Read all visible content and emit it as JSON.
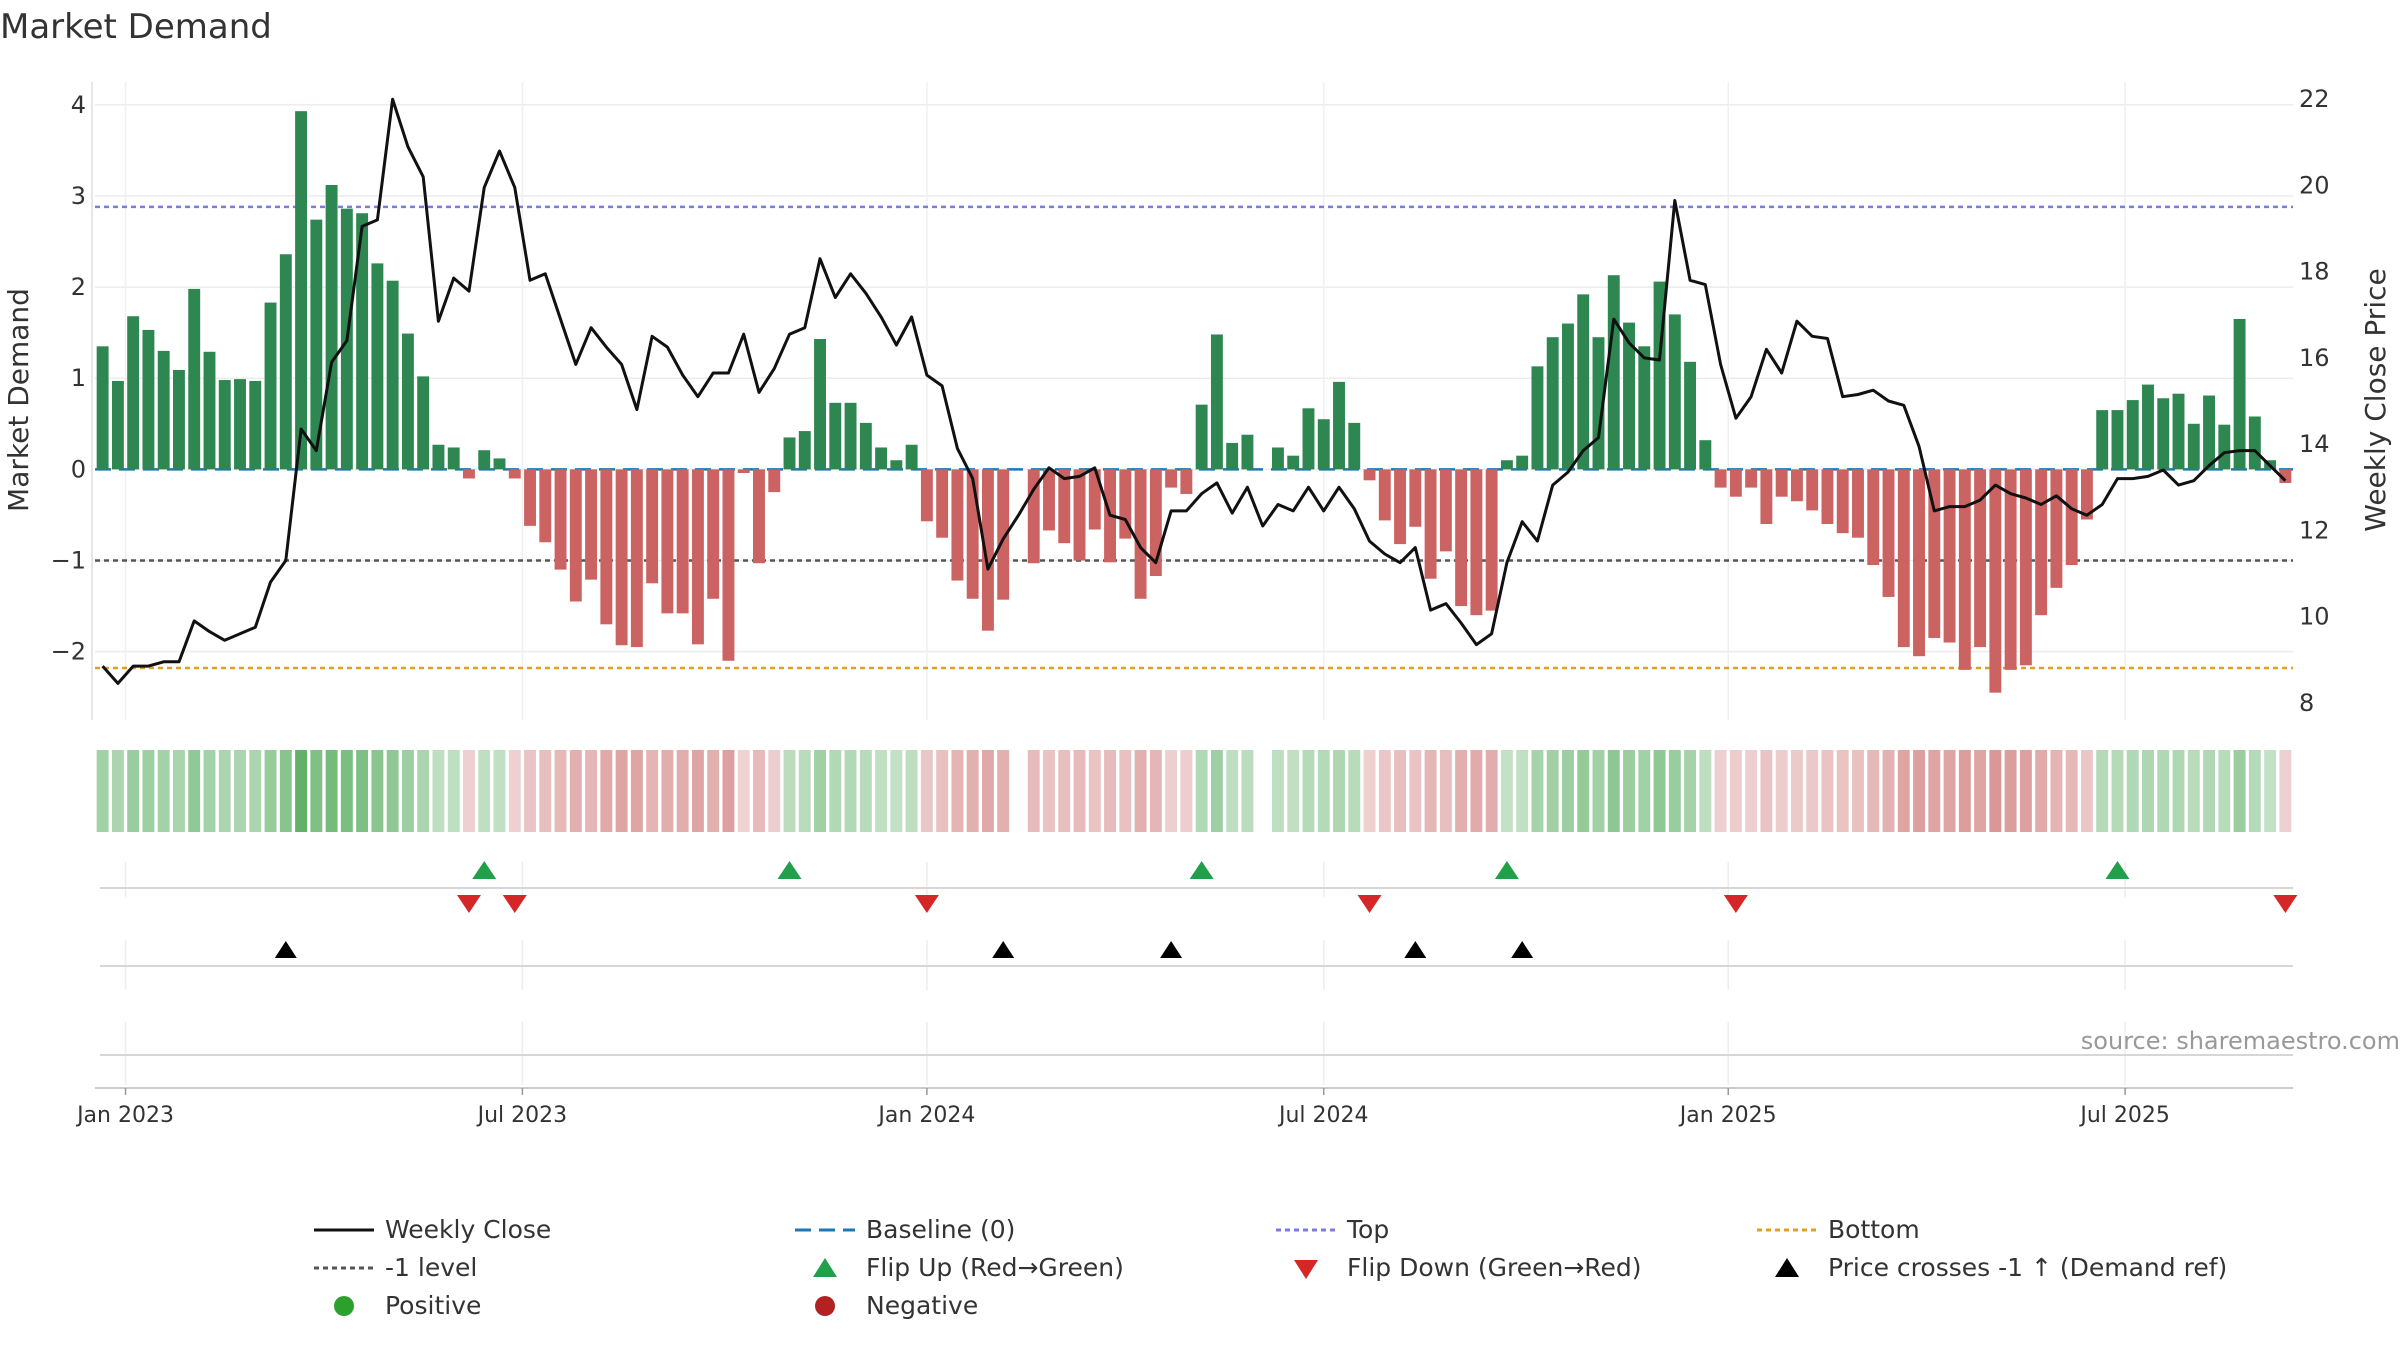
{
  "chart_data": {
    "type": "bar+line",
    "title": "Market Demand",
    "ylabel_left": "Market Demand",
    "ylabel_right": "Weekly Close Price",
    "ylim_left": [
      -2.75,
      4.25
    ],
    "ylim_right": [
      7.6,
      22.4
    ],
    "yticks_left": [
      {
        "v": 4,
        "label": "4"
      },
      {
        "v": 3,
        "label": "3"
      },
      {
        "v": 2,
        "label": "2"
      },
      {
        "v": 1,
        "label": "1"
      },
      {
        "v": 0,
        "label": "0"
      },
      {
        "v": -1,
        "label": "−1"
      },
      {
        "v": -2,
        "label": "−2"
      }
    ],
    "yticks_right": [
      {
        "v": 22,
        "label": "22"
      },
      {
        "v": 20,
        "label": "20"
      },
      {
        "v": 18,
        "label": "18"
      },
      {
        "v": 16,
        "label": "16"
      },
      {
        "v": 14,
        "label": "14"
      },
      {
        "v": 12,
        "label": "12"
      },
      {
        "v": 10,
        "label": "10"
      },
      {
        "v": 8,
        "label": "8"
      }
    ],
    "xticks": [
      {
        "week": 1.5,
        "label": "Jan 2023"
      },
      {
        "week": 27.5,
        "label": "Jul 2023"
      },
      {
        "week": 54,
        "label": "Jan 2024"
      },
      {
        "week": 80,
        "label": "Jul 2024"
      },
      {
        "week": 106.5,
        "label": "Jan 2025"
      },
      {
        "week": 132.5,
        "label": "Jul 2025"
      }
    ],
    "top_level": 2.88,
    "bottom_level": -2.18,
    "minus_one_level": -1,
    "baseline": 0,
    "demand": [
      1.35,
      0.97,
      1.68,
      1.53,
      1.3,
      1.09,
      1.98,
      1.29,
      0.98,
      0.99,
      0.97,
      1.83,
      2.36,
      3.93,
      2.74,
      3.12,
      2.86,
      2.81,
      2.26,
      2.07,
      1.49,
      1.02,
      0.27,
      0.24,
      -0.1,
      0.21,
      0.12,
      -0.1,
      -0.62,
      -0.8,
      -1.1,
      -1.45,
      -1.21,
      -1.7,
      -1.93,
      -1.95,
      -1.25,
      -1.58,
      -1.58,
      -1.92,
      -1.42,
      -2.1,
      -0.04,
      -1.03,
      -0.25,
      0.35,
      0.42,
      1.43,
      0.73,
      0.73,
      0.51,
      0.24,
      0.1,
      0.27,
      -0.57,
      -0.75,
      -1.22,
      -1.42,
      -1.77,
      -1.43,
      null,
      -1.03,
      -0.67,
      -0.81,
      -1.0,
      -0.66,
      -1.02,
      -0.76,
      -1.42,
      -1.17,
      -0.2,
      -0.27,
      0.71,
      1.48,
      0.29,
      0.38,
      null,
      0.24,
      0.15,
      0.67,
      0.55,
      0.96,
      0.51,
      -0.12,
      -0.56,
      -0.82,
      -0.63,
      -1.2,
      -0.9,
      -1.5,
      -1.6,
      -1.55,
      0.1,
      0.15,
      1.13,
      1.45,
      1.6,
      1.92,
      1.45,
      2.13,
      1.61,
      1.35,
      2.06,
      1.7,
      1.18,
      0.32,
      -0.2,
      -0.3,
      -0.2,
      -0.6,
      -0.3,
      -0.35,
      -0.45,
      -0.6,
      -0.7,
      -0.75,
      -1.05,
      -1.4,
      -1.95,
      -2.05,
      -1.85,
      -1.9,
      -2.2,
      -1.95,
      -2.45,
      -2.2,
      -2.15,
      -1.6,
      -1.3,
      -1.05,
      -0.55,
      0.65,
      0.65,
      0.76,
      0.93,
      0.78,
      0.83,
      0.5,
      0.81,
      0.49,
      1.65,
      0.58,
      0.1,
      -0.15
    ],
    "weekly_close": [
      8.85,
      8.45,
      8.85,
      8.85,
      8.95,
      8.95,
      9.9,
      9.65,
      9.45,
      9.6,
      9.75,
      10.8,
      11.3,
      14.35,
      13.85,
      15.9,
      16.4,
      19.05,
      19.2,
      22.0,
      20.9,
      20.2,
      16.85,
      17.85,
      17.55,
      19.95,
      20.8,
      19.95,
      17.8,
      17.95,
      16.9,
      15.85,
      16.7,
      16.25,
      15.85,
      14.8,
      16.5,
      16.25,
      15.6,
      15.1,
      15.65,
      15.65,
      16.55,
      15.2,
      15.75,
      16.55,
      16.7,
      18.3,
      17.4,
      17.95,
      17.5,
      16.95,
      16.3,
      16.95,
      15.6,
      15.35,
      13.9,
      13.2,
      11.1,
      11.8,
      12.35,
      12.95,
      13.45,
      13.2,
      13.25,
      13.45,
      12.35,
      12.25,
      11.6,
      11.25,
      12.45,
      12.45,
      12.85,
      13.1,
      12.4,
      13.0,
      12.1,
      12.6,
      12.45,
      13.0,
      12.45,
      13.0,
      12.5,
      11.75,
      11.45,
      11.25,
      11.6,
      10.15,
      10.3,
      9.85,
      9.35,
      9.6,
      11.25,
      12.2,
      11.75,
      13.05,
      13.35,
      13.85,
      14.15,
      16.9,
      16.35,
      16.0,
      15.95,
      19.65,
      17.8,
      17.7,
      15.85,
      14.6,
      15.1,
      16.2,
      15.65,
      16.85,
      16.5,
      16.45,
      15.1,
      15.15,
      15.25,
      15.0,
      14.9,
      13.95,
      12.45,
      12.55,
      12.55,
      12.7,
      13.05,
      12.85,
      12.75,
      12.6,
      12.8,
      12.5,
      12.35,
      12.6,
      13.2,
      13.2,
      13.25,
      13.4,
      13.05,
      13.15,
      13.5,
      13.8,
      13.85,
      13.85,
      13.5,
      13.15
    ],
    "flip_up_weeks": [
      25,
      45,
      72,
      92,
      132
    ],
    "flip_down_weeks": [
      24,
      27,
      54,
      83,
      107,
      143
    ],
    "price_cross_weeks": [
      12,
      59,
      70,
      86,
      93
    ],
    "colors": {
      "positive": "#2e8651",
      "negative": "#cb6363",
      "line": "#111111",
      "baseline": "#1f77b4",
      "top": "#7b7be0",
      "bottom": "#e0a020",
      "minus_one": "#555555",
      "flip_up": "#21a04a",
      "flip_down": "#d62728",
      "cross": "#000000",
      "legend_positive": "#2ca02c",
      "legend_negative": "#b22222"
    },
    "legend": [
      {
        "label": "Weekly Close",
        "symbol": "line"
      },
      {
        "label": "Baseline (0)",
        "symbol": "dash"
      },
      {
        "label": "Top",
        "symbol": "dot-blue"
      },
      {
        "label": "Bottom",
        "symbol": "dot-orange"
      },
      {
        "label": "-1 level",
        "symbol": "dot-gray"
      },
      {
        "label": "Flip Up (Red→Green)",
        "symbol": "tri-up-green"
      },
      {
        "label": "Flip Down (Green→Red)",
        "symbol": "tri-down-red"
      },
      {
        "label": "Price crosses -1 ↑ (Demand ref)",
        "symbol": "tri-up-black"
      },
      {
        "label": "Positive",
        "symbol": "circle-green"
      },
      {
        "label": "Negative",
        "symbol": "circle-red"
      }
    ],
    "source": "source: sharemaestro.com"
  }
}
